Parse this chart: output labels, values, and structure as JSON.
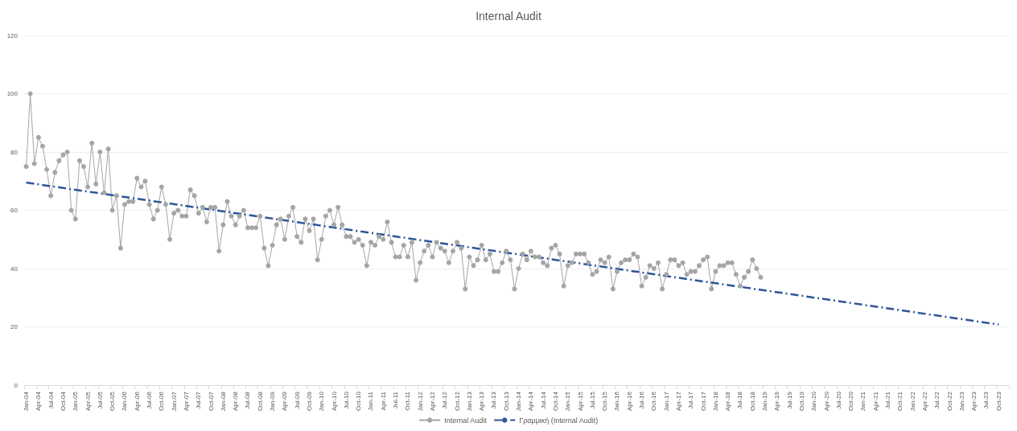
{
  "chart_data": {
    "type": "line",
    "title": "Internal Audit",
    "categories": [
      "Jan-04",
      null,
      null,
      "Apr-04",
      null,
      null,
      "Jul-04",
      null,
      null,
      "Oct-04",
      null,
      null,
      "Jan-05",
      null,
      null,
      "Apr-05",
      null,
      null,
      "Jul-05",
      null,
      null,
      "Oct-05",
      null,
      null,
      "Jan-06",
      null,
      null,
      "Apr-06",
      null,
      null,
      "Jul-06",
      null,
      null,
      "Oct-06",
      null,
      null,
      "Jan-07",
      null,
      null,
      "Apr-07",
      null,
      null,
      "Jul-07",
      null,
      null,
      "Oct-07",
      null,
      null,
      "Jan-08",
      null,
      null,
      "Apr-08",
      null,
      null,
      "Jul-08",
      null,
      null,
      "Oct-08",
      null,
      null,
      "Jan-09",
      null,
      null,
      "Apr-09",
      null,
      null,
      "Jul-09",
      null,
      null,
      "Oct-09",
      null,
      null,
      "Jan-10",
      null,
      null,
      "Apr-10",
      null,
      null,
      "Jul-10",
      null,
      null,
      "Oct-10",
      null,
      null,
      "Jan-11",
      null,
      null,
      "Apr-11",
      null,
      null,
      "Jul-11",
      null,
      null,
      "Oct-11",
      null,
      null,
      "Jan-12",
      null,
      null,
      "Apr-12",
      null,
      null,
      "Jul-12",
      null,
      null,
      "Oct-12",
      null,
      null,
      "Jan-13",
      null,
      null,
      "Apr-13",
      null,
      null,
      "Jul-13",
      null,
      null,
      "Oct-13",
      null,
      null,
      "Jan-14",
      null,
      null,
      "Apr-14",
      null,
      null,
      "Jul-14",
      null,
      null,
      "Oct-14",
      null,
      null,
      "Jan-15",
      null,
      null,
      "Apr-15",
      null,
      null,
      "Jul-15",
      null,
      null,
      "Oct-15",
      null,
      null,
      "Jan-16",
      null,
      null,
      "Apr-16",
      null,
      null,
      "Jul-16",
      null,
      null,
      "Oct-16",
      null,
      null,
      "Jan-17",
      null,
      null,
      "Apr-17",
      null,
      null,
      "Jul-17",
      null,
      null,
      "Oct-17",
      null,
      null,
      "Jan-18",
      null,
      null,
      "Apr-18",
      null,
      null,
      "Jul-18",
      null,
      null,
      "Oct-18",
      null,
      null,
      "Jan-19",
      null,
      null,
      "Apr-19",
      null,
      null,
      "Jul-19",
      null,
      null,
      "Oct-19",
      null,
      null,
      "Jan-20",
      null,
      null,
      "Apr-20",
      null,
      null,
      "Jul-20",
      null,
      null,
      "Oct-20",
      null,
      null,
      "Jan-21",
      null,
      null,
      "Apr-21",
      null,
      null,
      "Jul-21",
      null,
      null,
      "Oct-21",
      null,
      null,
      "Jan-22",
      null,
      null,
      "Apr-22",
      null,
      null,
      "Jul-22",
      null,
      null,
      "Oct-22",
      null,
      null,
      "Jan-23",
      null,
      null,
      "Apr-23",
      null,
      null,
      "Jul-23",
      null,
      null,
      "Oct-23",
      null,
      null
    ],
    "series": [
      {
        "name": "Internal Audit",
        "color": "#a5a5a5",
        "marker": "circle",
        "line_style": "solid",
        "values": [
          75,
          100,
          76,
          85,
          82,
          74,
          65,
          73,
          77,
          79,
          80,
          60,
          57,
          77,
          75,
          68,
          83,
          69,
          80,
          66,
          81,
          60,
          65,
          47,
          62,
          63,
          63,
          71,
          68,
          70,
          62,
          57,
          60,
          68,
          62,
          50,
          59,
          60,
          58,
          58,
          67,
          65,
          59,
          61,
          56,
          61,
          61,
          46,
          55,
          63,
          58,
          55,
          58,
          60,
          54,
          54,
          54,
          58,
          47,
          41,
          48,
          55,
          57,
          50,
          58,
          61,
          51,
          49,
          57,
          53,
          57,
          43,
          50,
          58,
          60,
          55,
          61,
          55,
          51,
          51,
          49,
          50,
          48,
          41,
          49,
          48,
          51,
          50,
          56,
          49,
          44,
          44,
          48,
          44,
          49,
          36,
          42,
          46,
          48,
          44,
          49,
          47,
          46,
          42,
          46,
          49,
          47,
          33,
          44,
          41,
          43,
          48,
          43,
          45,
          39,
          39,
          42,
          46,
          43,
          33,
          40,
          45,
          43,
          46,
          44,
          44,
          42,
          41,
          47,
          48,
          45,
          34,
          41,
          42,
          45,
          45,
          45,
          42,
          38,
          39,
          43,
          42,
          44,
          33,
          39,
          42,
          43,
          43,
          45,
          44,
          34,
          37,
          41,
          40,
          42,
          33,
          38,
          43,
          43,
          41,
          42,
          38,
          39,
          39,
          41,
          43,
          44,
          33,
          39,
          41,
          41,
          42,
          42,
          38,
          34,
          37,
          39,
          43,
          40,
          37,
          null,
          null,
          null,
          null,
          null,
          null,
          null,
          null,
          null,
          null,
          null,
          null,
          null,
          null,
          null,
          null,
          null,
          null,
          null,
          null,
          null,
          null,
          null,
          null,
          null,
          null,
          null,
          null,
          null,
          null,
          null,
          null,
          null,
          null,
          null,
          null,
          null,
          null,
          null,
          null,
          null,
          null,
          null,
          null,
          null,
          null,
          null,
          null,
          null,
          null,
          null,
          null,
          null,
          null,
          null,
          null,
          null,
          null,
          null,
          null
        ]
      },
      {
        "name": "Γραμμική (Internal Audit)",
        "type": "line",
        "color": "#2f5597",
        "marker": "none",
        "line_style": "dashed",
        "x": [
          "Jan-04",
          "Oct-23"
        ],
        "values": [
          69.5,
          20.8
        ]
      }
    ],
    "ylim": [
      0,
      120
    ],
    "yticks": [
      0,
      20,
      40,
      60,
      80,
      100,
      120
    ],
    "grid": "y",
    "legend": "bottom"
  }
}
